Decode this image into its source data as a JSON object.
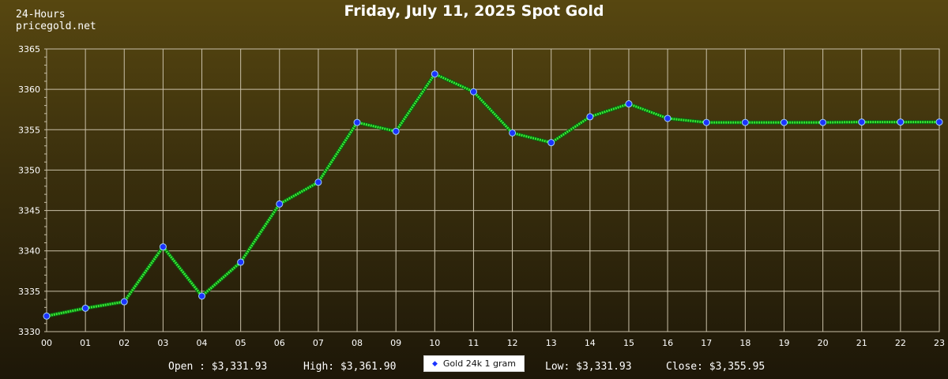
{
  "header": {
    "period": "24-Hours",
    "site": "pricegold.net",
    "title": "Friday, July 11, 2025 Spot Gold"
  },
  "footer": {
    "open": "Open : $3,331.93",
    "high": "High: $3,361.90",
    "low": "Low: $3,331.93",
    "close": "Close: $3,355.95"
  },
  "colors": {
    "line": "#33ee33",
    "marker": "#1a33ff",
    "grid": "#c9c0a8"
  },
  "chart_data": {
    "type": "line",
    "title": "Friday, July 11, 2025 Spot Gold",
    "xlabel": "",
    "ylabel": "",
    "categories": [
      "00",
      "01",
      "02",
      "03",
      "04",
      "05",
      "06",
      "07",
      "08",
      "09",
      "10",
      "11",
      "12",
      "13",
      "14",
      "15",
      "16",
      "17",
      "18",
      "19",
      "20",
      "21",
      "22",
      "23"
    ],
    "ylim": [
      3330,
      3365
    ],
    "yticks": [
      3330,
      3335,
      3340,
      3345,
      3350,
      3355,
      3360,
      3365
    ],
    "grid": true,
    "legend": "bottom-center",
    "series": [
      {
        "name": "Gold 24k 1 gram",
        "values": [
          3331.93,
          3332.9,
          3333.7,
          3340.5,
          3334.4,
          3338.6,
          3345.8,
          3348.5,
          3355.9,
          3354.8,
          3361.9,
          3359.7,
          3354.6,
          3353.4,
          3356.6,
          3358.2,
          3356.4,
          3355.9,
          3355.9,
          3355.9,
          3355.9,
          3355.95,
          3355.95,
          3355.95
        ]
      }
    ]
  }
}
